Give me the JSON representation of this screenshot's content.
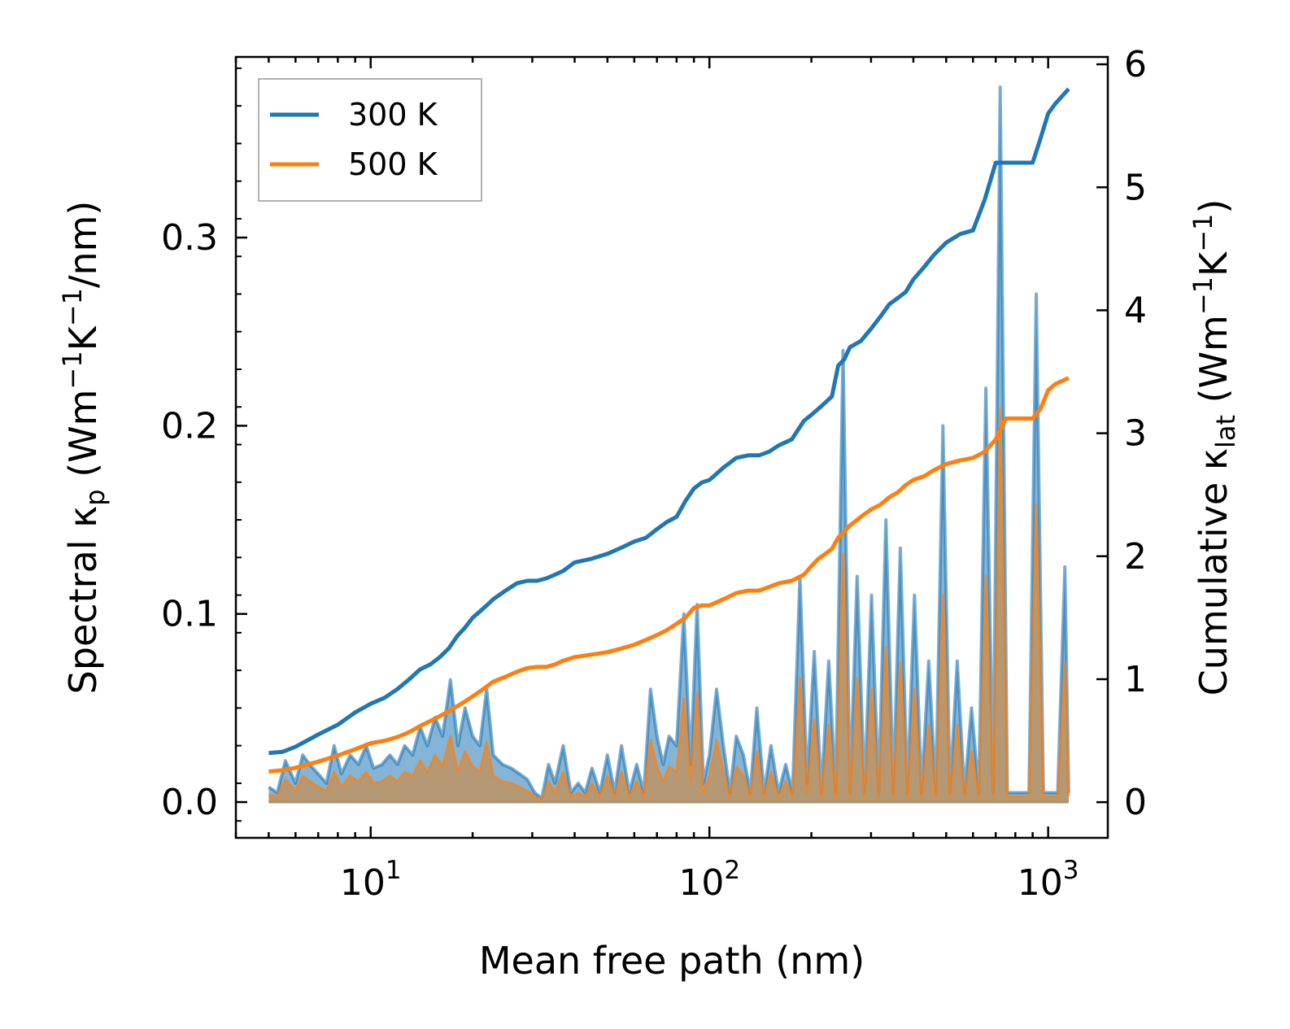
{
  "chart_data": {
    "type": "line",
    "title": "",
    "xlabel": "Mean free path (nm)",
    "xscale": "log",
    "xlim": [
      4,
      1500
    ],
    "x_ticks": [
      {
        "base": "10",
        "exp": "1"
      },
      {
        "base": "10",
        "exp": "2"
      },
      {
        "base": "10",
        "exp": "3"
      }
    ],
    "x_tick_values": [
      10,
      100,
      1000
    ],
    "ylabel_left": {
      "pre": "Spectral κ",
      "sub": "p",
      "mid": " (Wm",
      "sup1": "−1",
      "k": "K",
      "sup2": "−1",
      "post": "/nm)"
    },
    "ylabel_right": {
      "pre": "Cumulative κ",
      "sub": "lat",
      "mid": " (Wm",
      "sup1": "−1",
      "k": "K",
      "sup2": "−1",
      "post": ")"
    },
    "ylim_left": [
      -0.019,
      0.396
    ],
    "ylim_right": [
      -0.29,
      6.06
    ],
    "yticks_left": [
      "0.0",
      "0.1",
      "0.2",
      "0.3"
    ],
    "ytick_values_left": [
      0.0,
      0.1,
      0.2,
      0.3
    ],
    "yticks_right": [
      "0",
      "1",
      "2",
      "3",
      "4",
      "5",
      "6"
    ],
    "ytick_values_right": [
      0,
      1,
      2,
      3,
      4,
      5,
      6
    ],
    "legend": {
      "position": "top-left",
      "entries": [
        "300 K",
        "500 K"
      ]
    },
    "colors": {
      "300K": "#1f77b4",
      "500K": "#ff7f0e",
      "fill300": "#1f77b4",
      "fill500": "#d08a40"
    },
    "series": [
      {
        "name": "300 K",
        "axis": "right",
        "kind": "cumulative",
        "x": [
          5,
          5.5,
          6,
          7,
          8,
          9,
          10,
          11,
          12,
          13,
          14,
          15,
          16,
          17,
          18,
          19,
          20,
          21,
          22,
          23,
          25,
          27,
          29,
          31,
          33,
          35,
          37,
          40,
          45,
          50,
          55,
          60,
          65,
          70,
          75,
          80,
          85,
          90,
          95,
          100,
          110,
          120,
          130,
          140,
          150,
          160,
          175,
          190,
          200,
          210,
          220,
          230,
          240,
          250,
          260,
          280,
          300,
          320,
          340,
          360,
          380,
          400,
          430,
          460,
          500,
          550,
          600,
          650,
          700,
          750,
          800,
          900,
          950,
          1000,
          1050,
          1150
        ],
        "values": [
          0.4,
          0.41,
          0.45,
          0.55,
          0.63,
          0.73,
          0.8,
          0.85,
          0.92,
          1.0,
          1.08,
          1.12,
          1.18,
          1.25,
          1.35,
          1.42,
          1.5,
          1.55,
          1.6,
          1.65,
          1.72,
          1.78,
          1.8,
          1.8,
          1.82,
          1.85,
          1.88,
          1.95,
          1.98,
          2.02,
          2.07,
          2.12,
          2.15,
          2.22,
          2.28,
          2.32,
          2.45,
          2.55,
          2.6,
          2.62,
          2.72,
          2.8,
          2.82,
          2.82,
          2.85,
          2.9,
          2.95,
          3.1,
          3.15,
          3.2,
          3.25,
          3.3,
          3.55,
          3.6,
          3.7,
          3.75,
          3.85,
          3.95,
          4.05,
          4.1,
          4.15,
          4.25,
          4.35,
          4.45,
          4.55,
          4.62,
          4.65,
          4.9,
          5.2,
          5.2,
          5.2,
          5.2,
          5.4,
          5.6,
          5.68,
          5.8
        ]
      },
      {
        "name": "500 K",
        "axis": "right",
        "kind": "cumulative",
        "x": [
          5,
          5.5,
          6,
          7,
          8,
          9,
          10,
          11,
          12,
          13,
          14,
          15,
          16,
          17,
          18,
          19,
          20,
          21,
          22,
          23,
          25,
          27,
          29,
          31,
          33,
          35,
          37,
          40,
          45,
          50,
          55,
          60,
          65,
          70,
          75,
          80,
          85,
          90,
          95,
          100,
          110,
          120,
          130,
          140,
          150,
          160,
          175,
          190,
          200,
          210,
          220,
          230,
          240,
          250,
          260,
          280,
          300,
          320,
          340,
          360,
          380,
          400,
          430,
          460,
          500,
          550,
          600,
          650,
          700,
          750,
          800,
          900,
          950,
          1000,
          1050,
          1150
        ],
        "values": [
          0.25,
          0.26,
          0.28,
          0.33,
          0.38,
          0.43,
          0.48,
          0.5,
          0.53,
          0.57,
          0.62,
          0.66,
          0.7,
          0.74,
          0.78,
          0.82,
          0.86,
          0.9,
          0.94,
          0.98,
          1.02,
          1.06,
          1.09,
          1.1,
          1.1,
          1.12,
          1.15,
          1.18,
          1.2,
          1.22,
          1.25,
          1.28,
          1.32,
          1.36,
          1.4,
          1.45,
          1.5,
          1.58,
          1.6,
          1.6,
          1.65,
          1.7,
          1.72,
          1.72,
          1.75,
          1.78,
          1.8,
          1.85,
          1.92,
          1.98,
          2.02,
          2.06,
          2.15,
          2.2,
          2.25,
          2.32,
          2.38,
          2.42,
          2.48,
          2.52,
          2.58,
          2.62,
          2.65,
          2.7,
          2.75,
          2.78,
          2.8,
          2.85,
          2.95,
          3.12,
          3.12,
          3.12,
          3.2,
          3.35,
          3.4,
          3.45
        ]
      },
      {
        "name": "300 K spectral",
        "axis": "left",
        "kind": "spectral",
        "x": [
          5,
          5.3,
          5.6,
          6,
          6.3,
          6.6,
          7,
          7.4,
          7.8,
          8.2,
          8.7,
          9.2,
          9.7,
          10.2,
          10.8,
          11.4,
          12,
          12.6,
          13.3,
          14,
          14.7,
          15.5,
          16.3,
          17.2,
          18.1,
          19,
          20,
          21,
          22,
          23,
          24.5,
          26,
          27.5,
          29,
          30.5,
          32,
          33.5,
          35,
          37,
          39,
          41,
          43,
          45,
          47.5,
          50,
          52.5,
          55,
          58,
          61,
          64,
          67,
          70,
          73,
          76,
          80,
          84,
          88,
          92,
          96,
          100,
          105,
          110,
          115,
          120,
          126,
          132,
          138,
          145,
          152,
          160,
          168,
          176,
          185,
          194,
          204,
          214,
          225,
          236,
          248,
          260,
          273,
          287,
          301,
          316,
          332,
          349,
          366,
          384,
          403,
          423,
          444,
          466,
          489,
          513,
          539,
          566,
          594,
          624,
          655,
          688,
          722,
          758,
          796,
          836,
          878,
          922,
          968,
          1016,
          1067,
          1120,
          1150
        ],
        "values": [
          0.008,
          0.005,
          0.022,
          0.01,
          0.025,
          0.02,
          0.015,
          0.01,
          0.03,
          0.015,
          0.025,
          0.02,
          0.03,
          0.018,
          0.02,
          0.025,
          0.02,
          0.03,
          0.025,
          0.04,
          0.03,
          0.045,
          0.035,
          0.065,
          0.03,
          0.05,
          0.035,
          0.03,
          0.06,
          0.025,
          0.02,
          0.018,
          0.015,
          0.012,
          0.005,
          0.002,
          0.02,
          0.01,
          0.03,
          0.005,
          0.01,
          0.005,
          0.018,
          0.005,
          0.025,
          0.005,
          0.03,
          0.005,
          0.02,
          0.005,
          0.06,
          0.035,
          0.02,
          0.035,
          0.03,
          0.1,
          0.02,
          0.105,
          0.01,
          0.025,
          0.06,
          0.03,
          0.005,
          0.035,
          0.025,
          0.005,
          0.05,
          0.005,
          0.03,
          0.005,
          0.02,
          0.005,
          0.12,
          0.01,
          0.08,
          0.005,
          0.075,
          0.005,
          0.24,
          0.005,
          0.12,
          0.005,
          0.11,
          0.005,
          0.15,
          0.005,
          0.135,
          0.005,
          0.11,
          0.005,
          0.075,
          0.005,
          0.2,
          0.005,
          0.075,
          0.005,
          0.05,
          0.005,
          0.22,
          0.005,
          0.38,
          0.005,
          0.005,
          0.005,
          0.005,
          0.27,
          0.005,
          0.005,
          0.005,
          0.125,
          0.005
        ]
      },
      {
        "name": "500 K spectral",
        "axis": "left",
        "kind": "spectral",
        "x": [
          5,
          5.3,
          5.6,
          6,
          6.3,
          6.6,
          7,
          7.4,
          7.8,
          8.2,
          8.7,
          9.2,
          9.7,
          10.2,
          10.8,
          11.4,
          12,
          12.6,
          13.3,
          14,
          14.7,
          15.5,
          16.3,
          17.2,
          18.1,
          19,
          20,
          21,
          22,
          23,
          24.5,
          26,
          27.5,
          29,
          30.5,
          32,
          33.5,
          35,
          37,
          39,
          41,
          43,
          45,
          47.5,
          50,
          52.5,
          55,
          58,
          61,
          64,
          67,
          70,
          73,
          76,
          80,
          84,
          88,
          92,
          96,
          100,
          105,
          110,
          115,
          120,
          126,
          132,
          138,
          145,
          152,
          160,
          168,
          176,
          185,
          194,
          204,
          214,
          225,
          236,
          248,
          260,
          273,
          287,
          301,
          316,
          332,
          349,
          366,
          384,
          403,
          423,
          444,
          466,
          489,
          513,
          539,
          566,
          594,
          624,
          655,
          688,
          722,
          758,
          796,
          836,
          878,
          922,
          968,
          1016,
          1067,
          1120,
          1150
        ],
        "values": [
          0.004,
          0.003,
          0.012,
          0.006,
          0.014,
          0.011,
          0.008,
          0.006,
          0.016,
          0.008,
          0.014,
          0.011,
          0.016,
          0.01,
          0.011,
          0.014,
          0.011,
          0.016,
          0.014,
          0.022,
          0.016,
          0.025,
          0.019,
          0.035,
          0.016,
          0.027,
          0.019,
          0.016,
          0.032,
          0.014,
          0.011,
          0.01,
          0.008,
          0.006,
          0.003,
          0.001,
          0.011,
          0.005,
          0.016,
          0.003,
          0.005,
          0.003,
          0.01,
          0.003,
          0.014,
          0.003,
          0.016,
          0.003,
          0.011,
          0.003,
          0.033,
          0.019,
          0.011,
          0.019,
          0.016,
          0.055,
          0.011,
          0.058,
          0.005,
          0.014,
          0.033,
          0.016,
          0.003,
          0.019,
          0.014,
          0.003,
          0.027,
          0.003,
          0.016,
          0.003,
          0.011,
          0.003,
          0.066,
          0.005,
          0.044,
          0.003,
          0.041,
          0.003,
          0.132,
          0.003,
          0.066,
          0.003,
          0.06,
          0.003,
          0.082,
          0.003,
          0.074,
          0.003,
          0.06,
          0.003,
          0.041,
          0.003,
          0.11,
          0.003,
          0.041,
          0.003,
          0.027,
          0.003,
          0.12,
          0.003,
          0.209,
          0.003,
          0.003,
          0.003,
          0.003,
          0.158,
          0.003,
          0.003,
          0.003,
          0.074,
          0.003
        ]
      }
    ]
  }
}
